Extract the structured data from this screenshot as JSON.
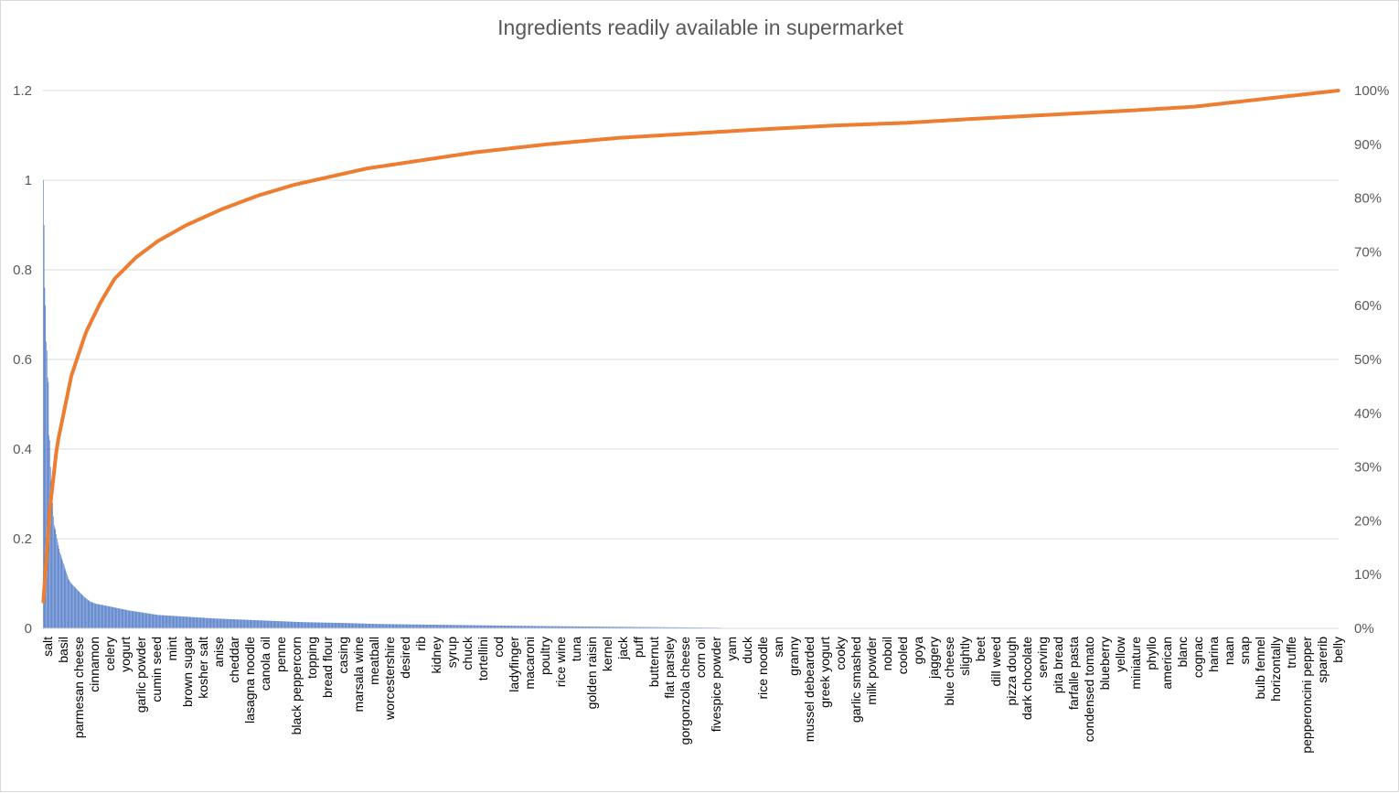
{
  "chart_data": {
    "type": "bar",
    "title": "Ingredients readily available in supermarket",
    "xlabel": "",
    "ylabel": "",
    "ylim": [
      0,
      1.2
    ],
    "y2lim": [
      0,
      1
    ],
    "y_ticks": [
      "0",
      "0.2",
      "0.4",
      "0.6",
      "0.8",
      "1",
      "1.2"
    ],
    "y2_ticks": [
      "0%",
      "10%",
      "20%",
      "30%",
      "40%",
      "50%",
      "60%",
      "70%",
      "80%",
      "90%",
      "100%"
    ],
    "grid": true,
    "legend": "none",
    "colors": {
      "bars": "#4472c4",
      "cumulative": "#ed7d31",
      "grid": "#d9d9d9",
      "text": "#595959"
    },
    "category_labels": [
      "salt",
      "basil",
      "parmesan cheese",
      "cinnamon",
      "celery",
      "yogurt",
      "garlic powder",
      "cumin seed",
      "mint",
      "brown sugar",
      "kosher salt",
      "anise",
      "cheddar",
      "lasagna noodle",
      "canola oil",
      "penne",
      "black peppercorn",
      "topping",
      "bread flour",
      "casing",
      "marsala wine",
      "meatball",
      "worcestershire",
      "desired",
      "rib",
      "kidney",
      "syrup",
      "chuck",
      "tortellini",
      "cod",
      "ladyfinger",
      "macaroni",
      "poultry",
      "rice wine",
      "tuna",
      "golden raisin",
      "kernel",
      "jack",
      "puff",
      "butternut",
      "flat parsley",
      "gorgonzola  cheese",
      "corn oil",
      "fivespice powder",
      "yam",
      "duck",
      "rice noodle",
      "san",
      "granny",
      "mussel debearded",
      "greek yogurt",
      "cooky",
      "garlic smashed",
      "milk powder",
      "noboil",
      "cooled",
      "goya",
      "jaggery",
      "blue cheese",
      "slightly",
      "beet",
      "dill weed",
      "pizza dough",
      "dark chocolate",
      "serving",
      "pita bread",
      "farfalle pasta",
      "condensed tomato",
      "blueberry",
      "yellow",
      "miniature",
      "phyllo",
      "american",
      "blanc",
      "cognac",
      "harina",
      "naan",
      "snap",
      "bulb fennel",
      "horizontally",
      "truffle",
      "pepperoncini  pepper",
      "sparerib",
      "belly"
    ],
    "bar_series": {
      "name": "",
      "profile": [
        [
          1,
          1.0
        ],
        [
          2,
          0.9
        ],
        [
          3,
          0.76
        ],
        [
          4,
          0.72
        ],
        [
          5,
          0.64
        ],
        [
          6,
          0.62
        ],
        [
          7,
          0.56
        ],
        [
          8,
          0.55
        ],
        [
          9,
          0.43
        ],
        [
          10,
          0.42
        ],
        [
          11,
          0.36
        ],
        [
          12,
          0.33
        ],
        [
          13,
          0.31
        ],
        [
          14,
          0.28
        ],
        [
          15,
          0.25
        ],
        [
          16,
          0.23
        ],
        [
          18,
          0.22
        ],
        [
          20,
          0.2
        ],
        [
          24,
          0.17
        ],
        [
          28,
          0.15
        ],
        [
          32,
          0.13
        ],
        [
          36,
          0.11
        ],
        [
          40,
          0.1
        ],
        [
          46,
          0.09
        ],
        [
          52,
          0.08
        ],
        [
          58,
          0.07
        ],
        [
          66,
          0.06
        ],
        [
          74,
          0.055
        ],
        [
          90,
          0.05
        ],
        [
          105,
          0.045
        ],
        [
          120,
          0.04
        ],
        [
          140,
          0.035
        ],
        [
          160,
          0.03
        ],
        [
          180,
          0.028
        ],
        [
          210,
          0.025
        ],
        [
          240,
          0.022
        ],
        [
          270,
          0.02
        ],
        [
          300,
          0.018
        ],
        [
          330,
          0.016
        ],
        [
          360,
          0.014
        ],
        [
          390,
          0.013
        ],
        [
          420,
          0.012
        ],
        [
          460,
          0.01
        ],
        [
          500,
          0.009
        ],
        [
          550,
          0.008
        ],
        [
          600,
          0.007
        ],
        [
          650,
          0.006
        ],
        [
          700,
          0.005
        ],
        [
          760,
          0.004
        ],
        [
          830,
          0.003
        ],
        [
          900,
          0.002
        ],
        [
          940,
          0.0015
        ],
        [
          950,
          0
        ]
      ],
      "count": 1800
    },
    "cumulative_series": {
      "name": "",
      "profile": [
        [
          1,
          0.05
        ],
        [
          10,
          0.22
        ],
        [
          20,
          0.34
        ],
        [
          40,
          0.47
        ],
        [
          60,
          0.55
        ],
        [
          80,
          0.605
        ],
        [
          100,
          0.65
        ],
        [
          130,
          0.69
        ],
        [
          160,
          0.72
        ],
        [
          200,
          0.75
        ],
        [
          250,
          0.78
        ],
        [
          300,
          0.805
        ],
        [
          350,
          0.825
        ],
        [
          400,
          0.84
        ],
        [
          450,
          0.855
        ],
        [
          500,
          0.865
        ],
        [
          600,
          0.885
        ],
        [
          700,
          0.9
        ],
        [
          800,
          0.912
        ],
        [
          900,
          0.92
        ],
        [
          1000,
          0.928
        ],
        [
          1100,
          0.935
        ],
        [
          1200,
          0.94
        ],
        [
          1300,
          0.948
        ],
        [
          1400,
          0.955
        ],
        [
          1500,
          0.962
        ],
        [
          1600,
          0.97
        ],
        [
          1700,
          0.985
        ],
        [
          1800,
          1.0
        ]
      ]
    }
  }
}
